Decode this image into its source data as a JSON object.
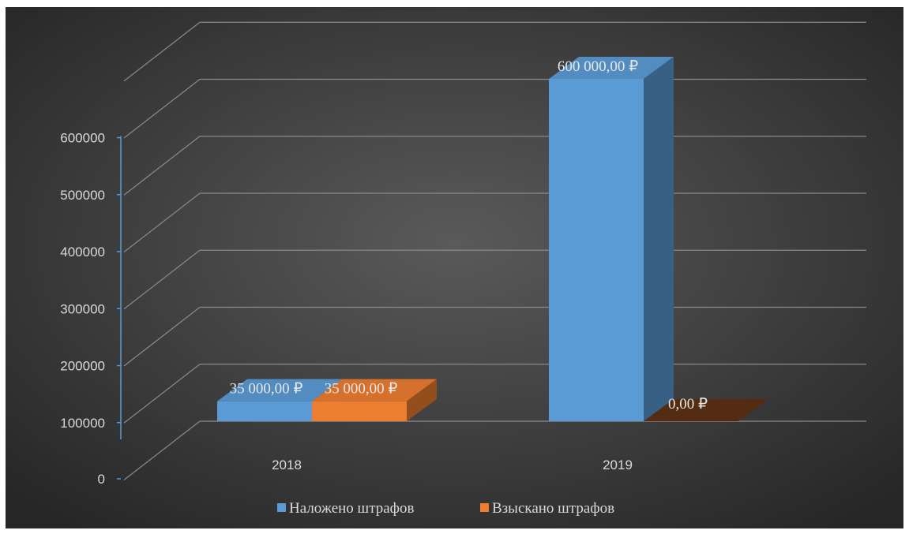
{
  "chart_data": {
    "type": "bar",
    "categories": [
      "2018",
      "2019"
    ],
    "series": [
      {
        "name": "Наложено штрафов",
        "values": [
          35000,
          600000
        ],
        "data_labels": [
          "35 000,00 ₽",
          "600 000,00 ₽"
        ],
        "color": "#5b9bd5"
      },
      {
        "name": "Взыскано штрафов",
        "values": [
          35000,
          0
        ],
        "data_labels": [
          "35 000,00 ₽",
          "0,00 ₽"
        ],
        "color": "#ed7d31"
      }
    ],
    "yticks": [
      "0",
      "100000",
      "200000",
      "300000",
      "400000",
      "500000",
      "600000"
    ],
    "ylim": [
      0,
      700000
    ],
    "grid": true,
    "legend_position": "bottom",
    "style": "3d-column",
    "background": "#404040",
    "axis_color": "#5b9bd5"
  }
}
